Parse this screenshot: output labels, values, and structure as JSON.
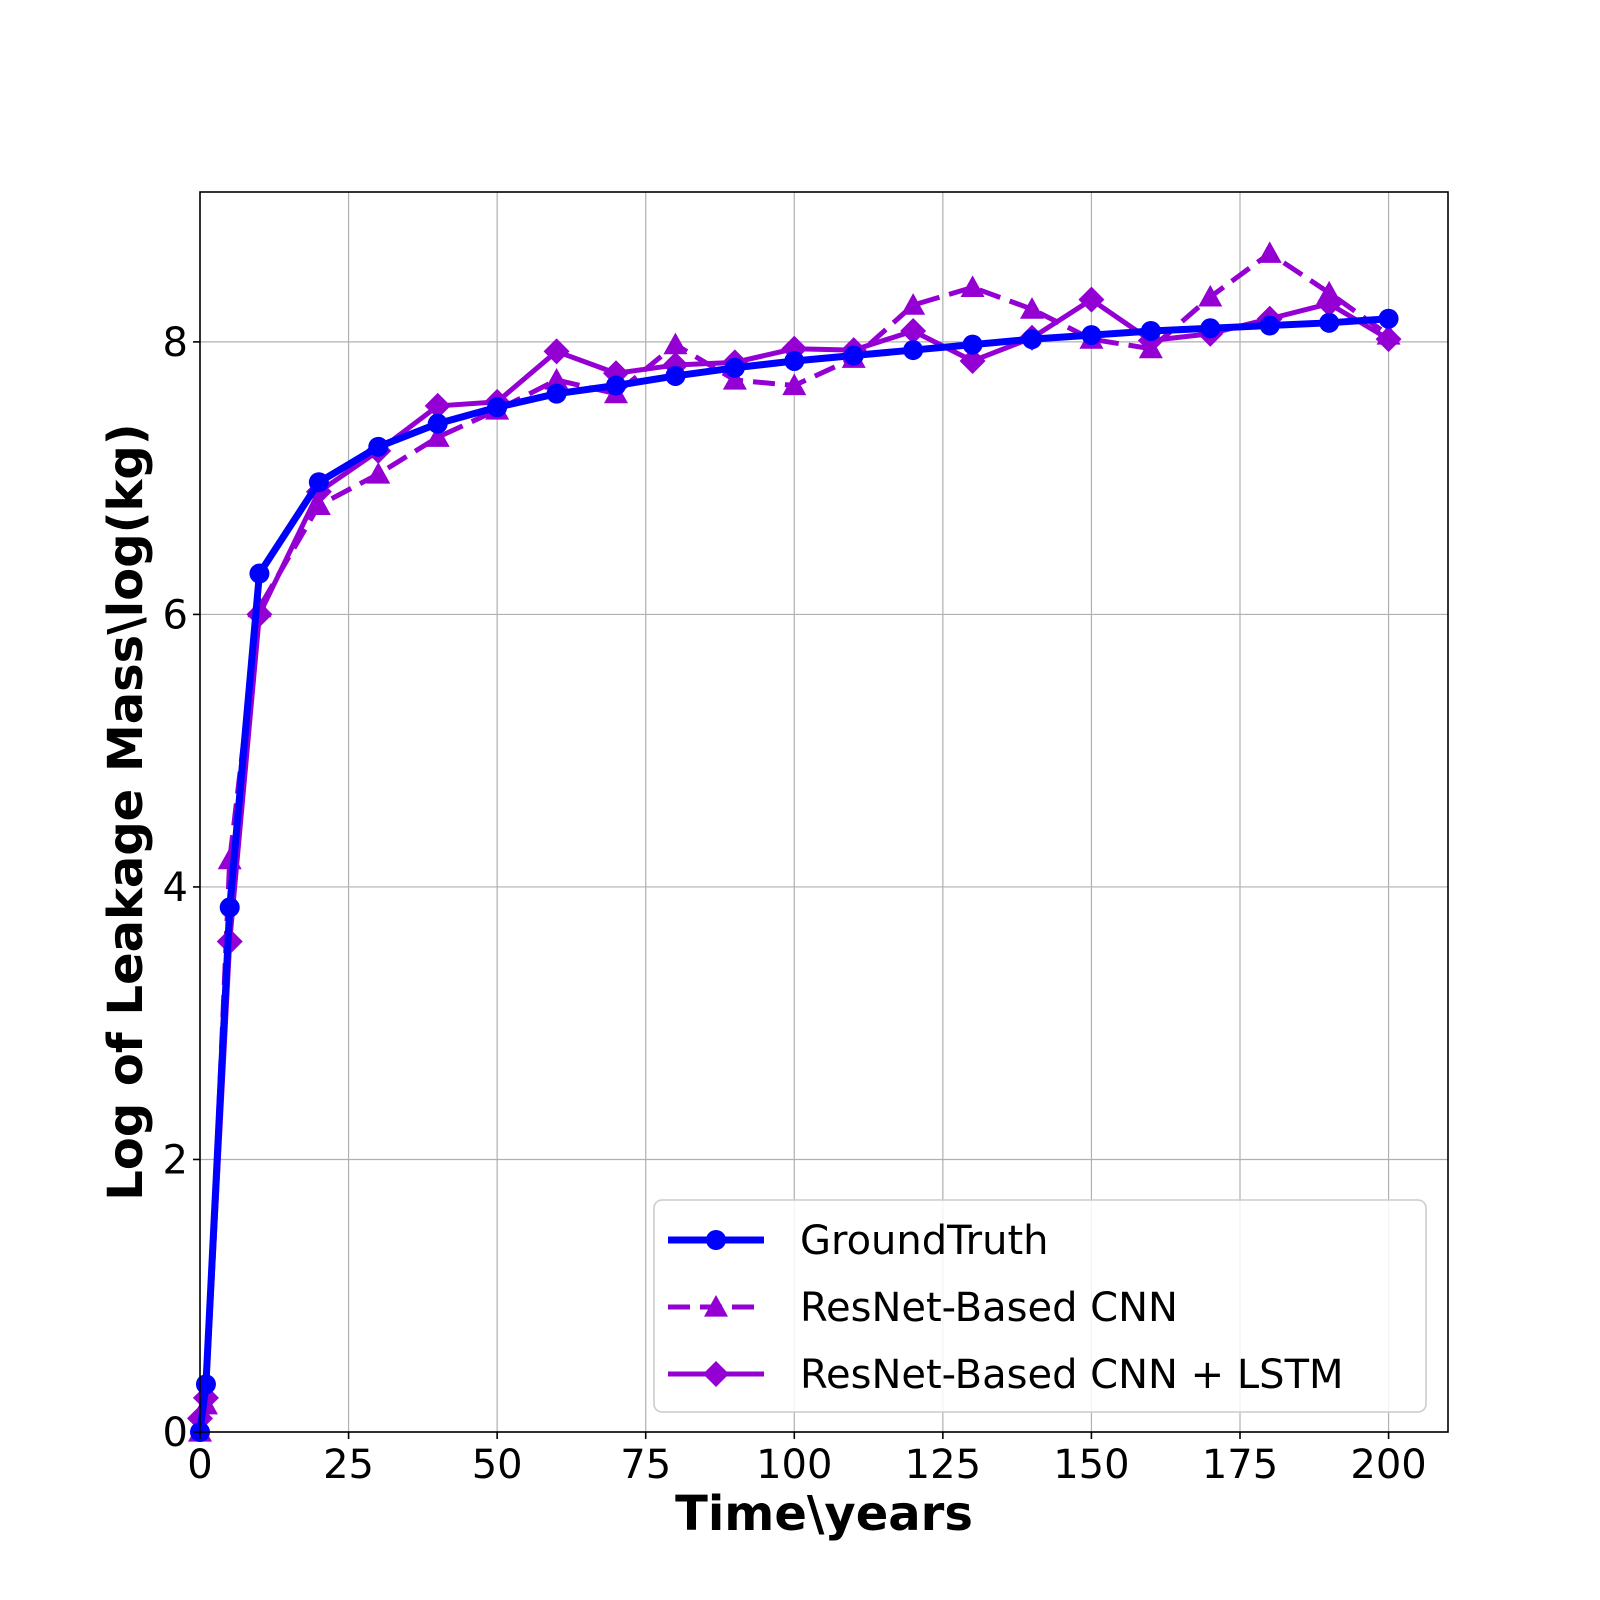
{
  "chart_data": {
    "type": "line",
    "xlabel": "Time\\years",
    "ylabel": "Log of Leakage Mass\\log(kg)",
    "xlim": [
      0,
      210
    ],
    "ylim": [
      0,
      9.1
    ],
    "xticks": [
      0,
      25,
      50,
      75,
      100,
      125,
      150,
      175,
      200
    ],
    "yticks": [
      0,
      2,
      4,
      6,
      8
    ],
    "grid": true,
    "legend_position": "bottom-right",
    "series": [
      {
        "name": "GroundTruth",
        "color": "#0000ff",
        "line_style": "solid",
        "marker": "circle",
        "x": [
          0,
          1,
          5,
          10,
          20,
          30,
          40,
          50,
          60,
          70,
          80,
          90,
          100,
          110,
          120,
          130,
          140,
          150,
          160,
          170,
          180,
          190,
          200
        ],
        "y": [
          0.0,
          0.35,
          3.85,
          6.3,
          6.97,
          7.23,
          7.4,
          7.52,
          7.62,
          7.68,
          7.75,
          7.81,
          7.86,
          7.9,
          7.94,
          7.98,
          8.02,
          8.05,
          8.08,
          8.1,
          8.12,
          8.14,
          8.17
        ]
      },
      {
        "name": "ResNet-Based CNN",
        "color": "#9400d3",
        "line_style": "dashed",
        "marker": "triangle",
        "x": [
          0,
          1,
          5,
          10,
          20,
          30,
          40,
          50,
          60,
          70,
          80,
          90,
          100,
          110,
          120,
          130,
          140,
          150,
          160,
          170,
          180,
          190,
          200
        ],
        "y": [
          0.0,
          0.2,
          4.2,
          6.05,
          6.8,
          7.03,
          7.3,
          7.5,
          7.72,
          7.62,
          7.98,
          7.72,
          7.68,
          7.88,
          8.27,
          8.4,
          8.24,
          8.02,
          7.95,
          8.33,
          8.65,
          8.36,
          8.05
        ]
      },
      {
        "name": "ResNet-Based CNN + LSTM",
        "color": "#9400d3",
        "line_style": "solid",
        "marker": "diamond",
        "x": [
          0,
          1,
          5,
          10,
          20,
          30,
          40,
          50,
          60,
          70,
          80,
          90,
          100,
          110,
          120,
          130,
          140,
          150,
          160,
          170,
          180,
          190,
          200
        ],
        "y": [
          0.1,
          0.25,
          3.6,
          6.0,
          6.9,
          7.2,
          7.53,
          7.56,
          7.93,
          7.77,
          7.83,
          7.85,
          7.95,
          7.94,
          8.08,
          7.86,
          8.03,
          8.31,
          8.01,
          8.06,
          8.17,
          8.28,
          8.02
        ]
      }
    ]
  }
}
